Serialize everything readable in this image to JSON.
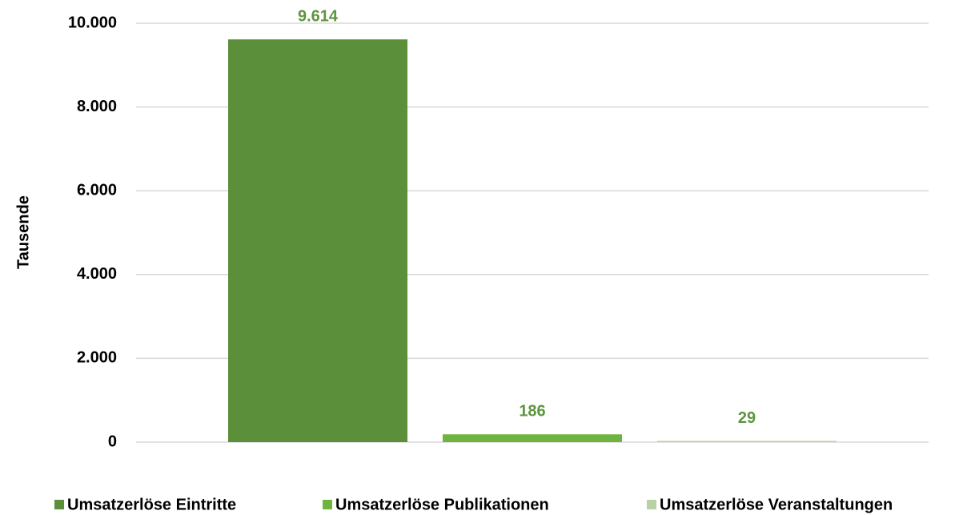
{
  "chart_data": {
    "type": "bar",
    "y_label": "Tausende",
    "categories": [
      null
    ],
    "series": [
      {
        "name": "Umsatzerlöse Eintritte",
        "color": "#5b8f3a",
        "values": [
          9614
        ],
        "value_labels": [
          "9.614"
        ]
      },
      {
        "name": "Umsatzerlöse Publikationen",
        "color": "#6fb43f",
        "values": [
          186
        ],
        "value_labels": [
          "186"
        ]
      },
      {
        "name": "Umsatzerlöse Veranstaltungen",
        "color": "#b8d2a4",
        "values": [
          29
        ],
        "value_labels": [
          "29"
        ]
      }
    ],
    "ylim": [
      0,
      10000
    ],
    "yticks": [
      0,
      {
        "value": 2000,
        "label": "2.000"
      },
      {
        "value": 4000,
        "label": "4.000"
      },
      {
        "value": 6000,
        "label": "6.000"
      },
      {
        "value": 8000,
        "label": "8.000"
      },
      {
        "value": 10000,
        "label": "10.000"
      }
    ],
    "grid": true,
    "legend": "bottom",
    "value_label_color": "#5f9440"
  }
}
